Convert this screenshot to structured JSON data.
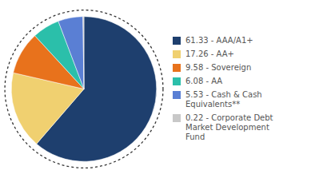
{
  "chart_data": {
    "type": "pie",
    "categories": [
      "61.33 - AAA/A1+",
      "17.26 - AA+",
      "9.58 - Sovereign",
      "6.08 - AA",
      "5.53 - Cash & Cash\nEquivalents**",
      "0.22 - Corporate Debt\nMarket Development\nFund"
    ],
    "values": [
      61.33,
      17.26,
      9.58,
      6.08,
      5.53,
      0.22
    ],
    "colors": [
      "#1e3f6e",
      "#f0d070",
      "#e8721c",
      "#2bbfaa",
      "#5a7fd4",
      "#c8c8c8"
    ],
    "legend": "right"
  }
}
